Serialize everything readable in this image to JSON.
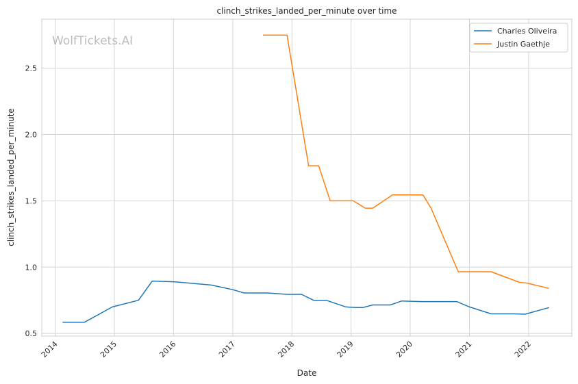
{
  "chart_data": {
    "type": "line",
    "title": "clinch_strikes_landed_per_minute over time",
    "xlabel": "Date",
    "ylabel": "clinch_strikes_landed_per_minute",
    "watermark": "WolfTickets.AI",
    "x_ticks": [
      "2014",
      "2015",
      "2016",
      "2017",
      "2018",
      "2019",
      "2020",
      "2021",
      "2022"
    ],
    "y_ticks": [
      "0.5",
      "1.0",
      "1.5",
      "2.0",
      "2.5"
    ],
    "xlim": [
      "2013-10-10",
      "2022-09-25"
    ],
    "ylim": [
      0.48,
      2.87
    ],
    "grid": true,
    "legend_position": "top-right",
    "series": [
      {
        "name": "Charles Oliveira",
        "color": "#1f77b4",
        "points": [
          [
            "2014-02-15",
            0.585
          ],
          [
            "2014-07-01",
            0.585
          ],
          [
            "2014-12-20",
            0.7
          ],
          [
            "2015-05-30",
            0.75
          ],
          [
            "2015-08-23",
            0.895
          ],
          [
            "2016-01-01",
            0.89
          ],
          [
            "2016-08-20",
            0.865
          ],
          [
            "2017-01-01",
            0.83
          ],
          [
            "2017-03-12",
            0.805
          ],
          [
            "2017-08-01",
            0.805
          ],
          [
            "2017-12-02",
            0.795
          ],
          [
            "2018-03-01",
            0.795
          ],
          [
            "2018-05-15",
            0.75
          ],
          [
            "2018-08-01",
            0.75
          ],
          [
            "2018-12-01",
            0.7
          ],
          [
            "2019-02-01",
            0.695
          ],
          [
            "2019-03-15",
            0.695
          ],
          [
            "2019-05-15",
            0.715
          ],
          [
            "2019-09-01",
            0.715
          ],
          [
            "2019-11-10",
            0.745
          ],
          [
            "2020-03-14",
            0.74
          ],
          [
            "2020-10-15",
            0.74
          ],
          [
            "2021-01-01",
            0.7
          ],
          [
            "2021-05-15",
            0.648
          ],
          [
            "2021-10-01",
            0.648
          ],
          [
            "2021-12-11",
            0.645
          ],
          [
            "2022-05-07",
            0.695
          ]
        ]
      },
      {
        "name": "Justin Gaethje",
        "color": "#ff7f0e",
        "points": [
          [
            "2017-07-07",
            2.75
          ],
          [
            "2017-12-02",
            2.75
          ],
          [
            "2018-04-14",
            1.765
          ],
          [
            "2018-06-15",
            1.765
          ],
          [
            "2018-08-25",
            1.5
          ],
          [
            "2019-01-15",
            1.5
          ],
          [
            "2019-03-30",
            1.445
          ],
          [
            "2019-05-15",
            1.445
          ],
          [
            "2019-09-14",
            1.545
          ],
          [
            "2020-03-20",
            1.545
          ],
          [
            "2020-05-09",
            1.445
          ],
          [
            "2020-10-24",
            0.965
          ],
          [
            "2021-05-15",
            0.965
          ],
          [
            "2021-11-06",
            0.885
          ],
          [
            "2021-12-20",
            0.88
          ],
          [
            "2022-05-07",
            0.84
          ]
        ]
      }
    ]
  }
}
